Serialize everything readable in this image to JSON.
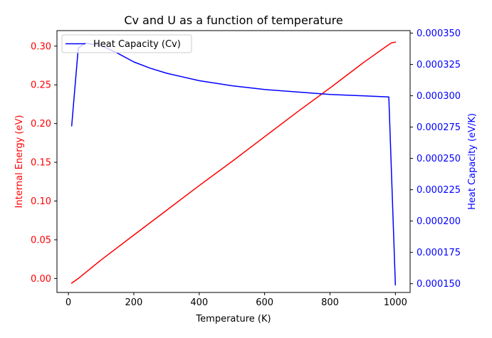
{
  "chart_data": {
    "type": "line",
    "title": "Cv and U as a function of temperature",
    "xlabel": "Temperature (K)",
    "ylabel_left": "Internal Energy (eV)",
    "ylabel_right": "Heat Capacity (eV/K)",
    "xlim": [
      -35,
      1045
    ],
    "ylim_left": [
      -0.018,
      0.32
    ],
    "ylim_right": [
      0.000143,
      0.000352
    ],
    "x_ticks": [
      0,
      200,
      400,
      600,
      800,
      1000
    ],
    "x_tick_labels": [
      "0",
      "200",
      "400",
      "600",
      "800",
      "1000"
    ],
    "y_left_ticks": [
      0.0,
      0.05,
      0.1,
      0.15,
      0.2,
      0.25,
      0.3
    ],
    "y_left_tick_labels": [
      "0.00",
      "0.05",
      "0.10",
      "0.15",
      "0.20",
      "0.25",
      "0.30"
    ],
    "y_right_ticks": [
      0.00015,
      0.000175,
      0.0002,
      0.000225,
      0.00025,
      0.000275,
      0.0003,
      0.000325,
      0.00035
    ],
    "y_right_tick_labels": [
      "0.000150",
      "0.000175",
      "0.000200",
      "0.000225",
      "0.000250",
      "0.000275",
      "0.000300",
      "0.000325",
      "0.000350"
    ],
    "grid": false,
    "legend": {
      "placement": "top-left",
      "entries": [
        "Heat Capacity (Cv)"
      ]
    },
    "colors": {
      "left_axis": "#ff0000",
      "right_axis": "#0000ff",
      "energy_line": "#ff0000",
      "cv_line": "#0000ff"
    },
    "series": [
      {
        "axis": "left",
        "color": "#ff0000",
        "x": [
          10,
          30,
          100,
          200,
          300,
          400,
          500,
          600,
          700,
          800,
          900,
          980,
          990,
          1000
        ],
        "values": [
          -0.006,
          0.0,
          0.024,
          0.056,
          0.088,
          0.12,
          0.151,
          0.183,
          0.215,
          0.246,
          0.278,
          0.302,
          0.3045,
          0.305
        ]
      },
      {
        "name": "Heat Capacity (Cv)",
        "axis": "right",
        "color": "#0000ff",
        "x": [
          10,
          30,
          50,
          100,
          150,
          200,
          250,
          300,
          400,
          500,
          600,
          700,
          800,
          900,
          980,
          1000
        ],
        "values": [
          0.000276,
          0.000338,
          0.000342,
          0.00034,
          0.000334,
          0.000327,
          0.000322,
          0.000318,
          0.000312,
          0.000308,
          0.000305,
          0.000303,
          0.000301,
          0.0003,
          0.000299,
          0.000149
        ]
      }
    ]
  }
}
